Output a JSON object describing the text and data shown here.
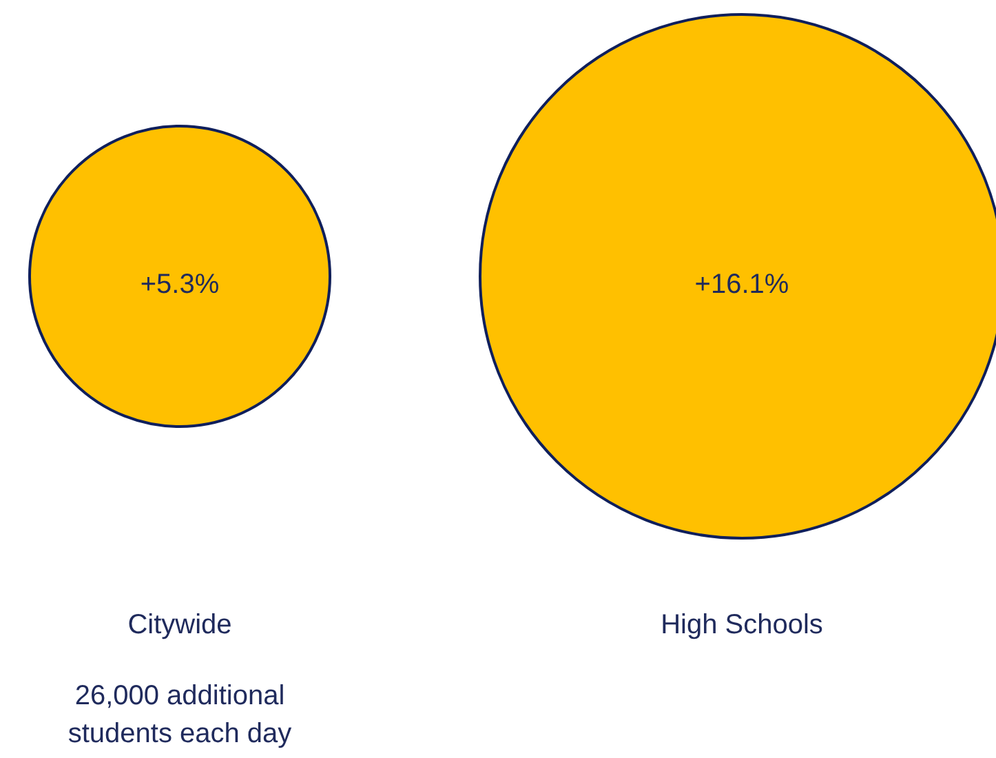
{
  "chart_data": {
    "type": "other",
    "categories": [
      "Citywide",
      "High Schools"
    ],
    "values": [
      5.3,
      16.1
    ],
    "value_labels": [
      "+5.3%",
      "+16.1%"
    ],
    "colors": [
      "#ffc000",
      "#ffc000"
    ],
    "annotations": [
      "26,000 additional\nstudents each day"
    ]
  }
}
